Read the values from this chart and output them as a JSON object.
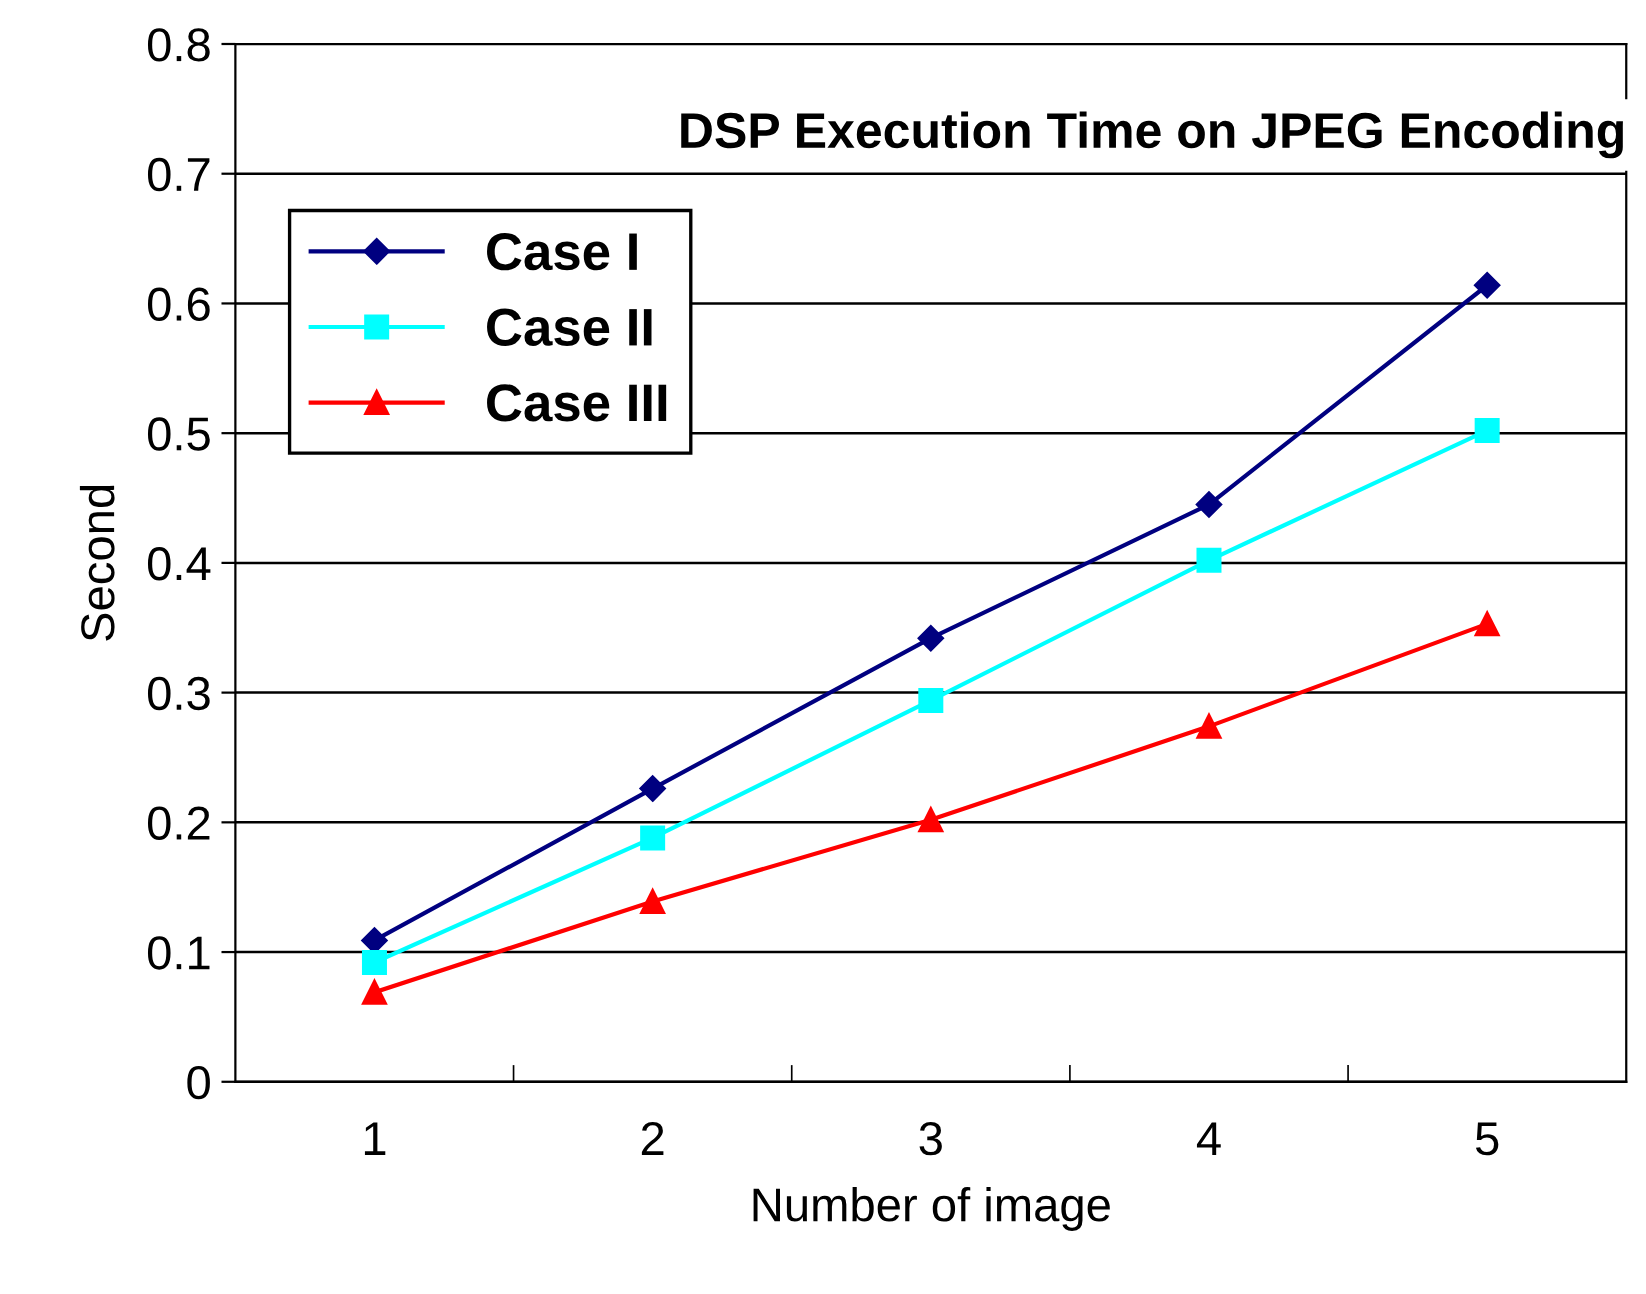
{
  "chart_data": {
    "type": "line",
    "title": "DSP Execution Time on JPEG Encoding",
    "xlabel": "Number of image",
    "ylabel": "Second",
    "categories": [
      "1",
      "2",
      "3",
      "4",
      "5"
    ],
    "series": [
      {
        "name": "Case I",
        "color": "#000080",
        "marker": "diamond",
        "values": [
          0.109,
          0.226,
          0.342,
          0.445,
          0.614
        ]
      },
      {
        "name": "Case II",
        "color": "#00ffff",
        "marker": "square",
        "values": [
          0.092,
          0.188,
          0.294,
          0.402,
          0.502
        ]
      },
      {
        "name": "Case III",
        "color": "#ff0000",
        "marker": "triangle",
        "values": [
          0.069,
          0.139,
          0.202,
          0.274,
          0.353
        ]
      }
    ],
    "ylim": [
      0,
      0.8
    ],
    "yticks": [
      0,
      0.1,
      0.2,
      0.3,
      0.4,
      0.5,
      0.6,
      0.7,
      0.8
    ],
    "grid": "y",
    "legend": "top left",
    "line_style": "solid"
  }
}
